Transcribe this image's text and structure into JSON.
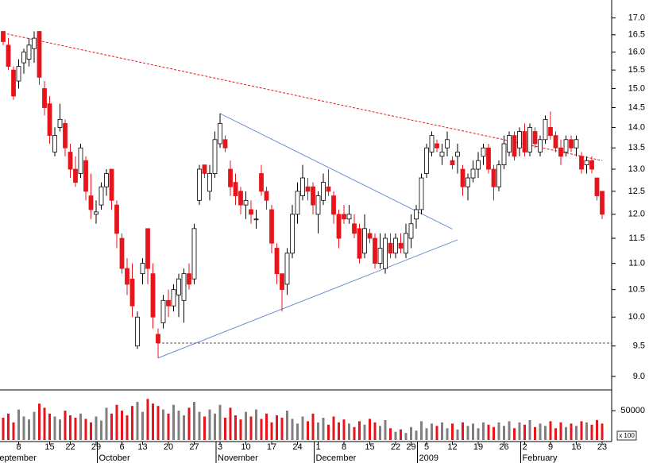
{
  "chart_data": {
    "type": "candlestick",
    "log": true,
    "up_color": "#ffffff",
    "down_color": "#e8141c",
    "ylim": [
      8.8,
      17.55
    ],
    "yticks": [
      {
        "value": 9,
        "label": "9.0"
      },
      9.5,
      {
        "value": 10,
        "label": "10.0"
      },
      10.5,
      {
        "value": 11,
        "label": "11.0"
      },
      11.5,
      {
        "value": 12,
        "label": "12.0"
      },
      12.5,
      {
        "value": 13,
        "label": "13.0"
      },
      13.5,
      {
        "value": 14,
        "label": "14.0"
      },
      14.5,
      {
        "value": 15,
        "label": "15.0"
      },
      15.5,
      {
        "value": 16,
        "label": "16.0"
      },
      16.5,
      {
        "value": 17,
        "label": "17.0"
      }
    ],
    "categories": [
      null,
      null,
      null,
      "8",
      null,
      null,
      null,
      null,
      null,
      "15",
      null,
      null,
      null,
      "22",
      null,
      null,
      null,
      null,
      "29",
      null,
      null,
      null,
      null,
      "6",
      null,
      null,
      null,
      "13",
      null,
      null,
      null,
      null,
      "20",
      null,
      null,
      null,
      null,
      "27",
      null,
      null,
      null,
      null,
      "3",
      null,
      null,
      null,
      null,
      "10",
      null,
      null,
      null,
      null,
      "17",
      null,
      null,
      null,
      null,
      "24",
      null,
      null,
      null,
      "1",
      null,
      null,
      null,
      null,
      "8",
      null,
      null,
      null,
      null,
      "15",
      null,
      null,
      null,
      null,
      "22",
      null,
      null,
      "29",
      null,
      null,
      "5",
      null,
      null,
      null,
      null,
      "12",
      null,
      null,
      null,
      null,
      "19",
      null,
      null,
      null,
      null,
      "26",
      null,
      null,
      null,
      "2",
      null,
      null,
      null,
      null,
      "9",
      null,
      null,
      null,
      null,
      "16",
      null,
      null,
      null,
      null,
      "23"
    ],
    "months": [
      "September",
      null,
      null,
      null,
      null,
      null,
      null,
      null,
      null,
      null,
      null,
      null,
      null,
      null,
      null,
      null,
      null,
      null,
      null,
      "October",
      null,
      null,
      null,
      null,
      null,
      null,
      null,
      null,
      null,
      null,
      null,
      null,
      null,
      null,
      null,
      null,
      null,
      null,
      null,
      null,
      null,
      null,
      "November",
      null,
      null,
      null,
      null,
      null,
      null,
      null,
      null,
      null,
      null,
      null,
      null,
      null,
      null,
      null,
      null,
      null,
      null,
      "December",
      null,
      null,
      null,
      null,
      null,
      null,
      null,
      null,
      null,
      null,
      null,
      null,
      null,
      null,
      null,
      null,
      null,
      null,
      null,
      "2009",
      null,
      null,
      null,
      null,
      null,
      null,
      null,
      null,
      null,
      null,
      null,
      null,
      null,
      null,
      null,
      null,
      null,
      null,
      null,
      "February",
      null,
      null,
      null,
      null,
      null,
      null,
      null,
      null,
      null,
      null,
      null,
      null,
      null,
      null,
      null
    ],
    "open": [
      16.6,
      16.2,
      15.5,
      15.2,
      15.7,
      15.8,
      16.1,
      16.6,
      15.0,
      14.6,
      13.4,
      14.0,
      14.1,
      13.4,
      13.0,
      12.9,
      13.2,
      12.4,
      12.0,
      12.2,
      12.6,
      13.0,
      12.2,
      11.5,
      10.9,
      10.7,
      9.5,
      10.8,
      11.7,
      10.8,
      9.7,
      9.9,
      10.3,
      10.2,
      10.4,
      10.3,
      10.8,
      10.7,
      12.3,
      13.1,
      12.5,
      12.9,
      13.6,
      13.7,
      13.0,
      12.7,
      12.5,
      12.2,
      12.1,
      11.9,
      12.9,
      12.5,
      12.1,
      11.3,
      10.8,
      10.6,
      11.2,
      12.0,
      12.4,
      12.6,
      12.6,
      12.0,
      12.3,
      12.6,
      12.4,
      12.0,
      12.0,
      11.9,
      11.8,
      11.7,
      11.2,
      11.6,
      11.5,
      11.0,
      10.9,
      11.4,
      11.2,
      11.4,
      11.2,
      11.5,
      11.9,
      12.1,
      12.9,
      13.4,
      13.6,
      13.3,
      13.5,
      13.2,
      13.3,
      13.0,
      12.6,
      12.8,
      13.0,
      13.3,
      13.5,
      13.0,
      12.6,
      13.1,
      13.4,
      13.8,
      13.5,
      13.9,
      13.4,
      13.9,
      13.4,
      13.7,
      14.0,
      13.8,
      13.5,
      13.4,
      13.7,
      13.5,
      13.3,
      13.1,
      13.2,
      12.8,
      12.5
    ],
    "high": [
      16.6,
      16.4,
      15.6,
      15.8,
      16.1,
      16.4,
      16.6,
      16.6,
      15.2,
      14.8,
      14.0,
      14.6,
      14.2,
      13.6,
      13.3,
      13.6,
      13.3,
      12.9,
      12.3,
      12.7,
      13.0,
      13.0,
      12.3,
      11.6,
      11.1,
      11.0,
      10.1,
      11.1,
      11.7,
      11.0,
      9.8,
      10.4,
      10.5,
      10.6,
      10.8,
      10.9,
      11.0,
      11.8,
      13.1,
      13.1,
      13.1,
      13.9,
      14.35,
      13.8,
      13.2,
      12.9,
      12.6,
      12.5,
      12.3,
      12.1,
      13.1,
      12.6,
      12.2,
      11.4,
      10.8,
      11.3,
      12.2,
      12.7,
      13.1,
      12.8,
      12.7,
      12.5,
      12.9,
      13.0,
      12.5,
      12.1,
      12.2,
      12.2,
      12.0,
      11.8,
      12.0,
      11.7,
      11.6,
      11.6,
      11.6,
      11.6,
      11.6,
      11.6,
      11.8,
      12.0,
      12.2,
      12.9,
      13.6,
      13.9,
      13.7,
      13.6,
      13.9,
      13.3,
      13.6,
      13.1,
      12.9,
      13.2,
      13.4,
      13.6,
      13.6,
      13.1,
      13.2,
      13.8,
      13.9,
      13.9,
      14.0,
      14.1,
      14.1,
      14.0,
      13.8,
      14.3,
      14.4,
      13.9,
      13.7,
      13.8,
      13.8,
      13.8,
      13.4,
      13.3,
      13.3,
      12.8,
      12.5
    ],
    "low": [
      16.2,
      15.5,
      14.7,
      15.0,
      15.4,
      15.6,
      15.7,
      15.1,
      14.3,
      13.6,
      13.3,
      13.9,
      13.3,
      12.8,
      12.6,
      12.8,
      12.3,
      11.9,
      11.8,
      12.1,
      12.4,
      12.1,
      11.3,
      10.8,
      10.4,
      10.0,
      9.45,
      10.6,
      10.6,
      9.8,
      9.3,
      9.8,
      10.0,
      10.1,
      10.0,
      9.9,
      10.5,
      10.6,
      12.2,
      12.8,
      12.3,
      12.8,
      13.5,
      13.4,
      12.4,
      12.2,
      12.0,
      11.9,
      11.8,
      11.7,
      12.4,
      12.1,
      11.2,
      10.6,
      10.1,
      10.4,
      11.1,
      11.8,
      12.3,
      12.3,
      12.0,
      11.6,
      12.2,
      12.4,
      11.8,
      11.3,
      11.8,
      11.8,
      11.5,
      11.0,
      11.1,
      11.4,
      10.9,
      10.9,
      10.8,
      11.1,
      11.1,
      11.2,
      11.1,
      11.3,
      11.7,
      12.0,
      12.8,
      13.3,
      13.4,
      13.1,
      13.3,
      13.0,
      12.9,
      12.4,
      12.3,
      12.7,
      12.8,
      13.1,
      12.9,
      12.3,
      12.5,
      13.0,
      13.3,
      13.2,
      13.3,
      13.3,
      13.3,
      13.5,
      13.3,
      13.6,
      13.7,
      13.4,
      13.1,
      13.3,
      13.4,
      13.3,
      12.9,
      12.9,
      12.9,
      12.3,
      11.9
    ],
    "close": [
      16.3,
      15.6,
      14.8,
      15.6,
      16.0,
      16.2,
      16.4,
      15.3,
      14.5,
      13.8,
      13.8,
      14.2,
      13.5,
      13.0,
      12.7,
      13.5,
      12.5,
      12.1,
      12.05,
      12.6,
      12.9,
      12.3,
      11.6,
      10.9,
      10.6,
      10.2,
      10.0,
      11.0,
      10.9,
      10.0,
      9.55,
      10.3,
      10.2,
      10.5,
      10.7,
      10.8,
      10.6,
      11.7,
      13.0,
      12.9,
      12.9,
      13.7,
      14.1,
      13.5,
      12.6,
      12.4,
      12.2,
      12.3,
      12.0,
      11.9,
      12.5,
      12.3,
      11.4,
      10.8,
      10.5,
      11.2,
      12.0,
      12.5,
      12.8,
      12.5,
      12.2,
      12.4,
      12.7,
      12.5,
      12.0,
      11.5,
      11.9,
      12.0,
      11.6,
      11.1,
      11.7,
      11.5,
      11.0,
      11.3,
      11.5,
      11.2,
      11.5,
      11.3,
      11.6,
      11.8,
      12.1,
      12.8,
      13.5,
      13.8,
      13.5,
      13.4,
      13.7,
      13.1,
      13.4,
      12.6,
      12.8,
      13.0,
      13.2,
      13.5,
      13.0,
      12.6,
      13.1,
      13.6,
      13.8,
      13.3,
      13.9,
      13.4,
      14.0,
      13.6,
      13.7,
      14.2,
      13.8,
      13.5,
      13.3,
      13.7,
      13.5,
      13.7,
      13.0,
      13.2,
      13.0,
      12.4,
      12.0
    ],
    "trendlines": [
      {
        "color": "#e8141c",
        "dashed": true,
        "x": [
          0,
          116
        ],
        "y": [
          16.55,
          13.2
        ]
      },
      {
        "color": "#6b8fd0",
        "dashed": false,
        "x": [
          42,
          87
        ],
        "y": [
          14.35,
          11.69
        ]
      },
      {
        "color": "#6b8fd0",
        "dashed": false,
        "x": [
          30,
          88
        ],
        "y": [
          9.3,
          11.47
        ]
      },
      {
        "color": "#555555",
        "dashed": true,
        "x": [
          30,
          118
        ],
        "y": [
          9.55,
          9.55
        ]
      }
    ],
    "volume": {
      "unit_label": "x 100",
      "gray_color": "#808080",
      "ylim": [
        0,
        84000
      ],
      "yticks": [
        50000
      ],
      "values": [
        38000,
        45000,
        30000,
        52000,
        40000,
        35000,
        48000,
        62000,
        55000,
        45000,
        40000,
        35000,
        50000,
        42000,
        38000,
        45000,
        36000,
        30000,
        40000,
        33000,
        55000,
        45000,
        60000,
        50000,
        42000,
        58000,
        65000,
        48000,
        70000,
        62000,
        58000,
        52000,
        45000,
        60000,
        50000,
        42000,
        55000,
        65000,
        48000,
        40000,
        52000,
        45000,
        60000,
        38000,
        55000,
        42000,
        35000,
        48000,
        40000,
        52000,
        36000,
        45000,
        30000,
        42000,
        38000,
        50000,
        36000,
        28000,
        40000,
        32000,
        45000,
        30000,
        38000,
        26000,
        40000,
        30000,
        35000,
        28000,
        22000,
        32000,
        26000,
        36000,
        30000,
        24000,
        34000,
        20000,
        14000,
        18000,
        12000,
        22000,
        16000,
        32000,
        20000,
        28000,
        24000,
        30000,
        20000,
        28000,
        18000,
        30000,
        24000,
        28000,
        20000,
        30000,
        26000,
        22000,
        30000,
        24000,
        32000,
        20000,
        30000,
        26000,
        34000,
        22000,
        28000,
        24000,
        32000,
        20000,
        30000,
        22000,
        28000,
        24000,
        32000,
        30000,
        26000,
        34000,
        28000
      ]
    }
  }
}
